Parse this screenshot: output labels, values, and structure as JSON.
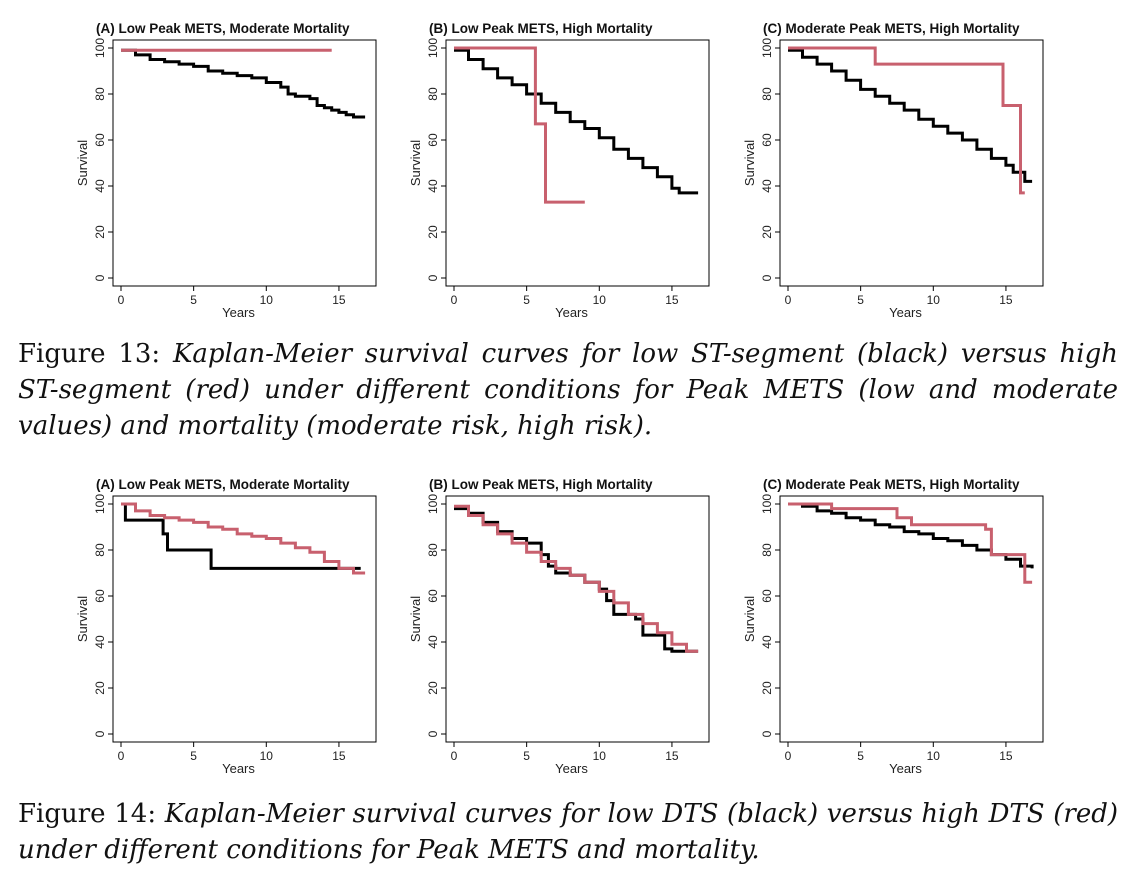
{
  "figures": [
    {
      "id": "fig13",
      "caption": {
        "label": "Figure 13:",
        "text": "Kaplan-Meier survival curves for low ST-segment (black) versus high ST-segment (red) under different conditions for Peak METS (low and moderate values) and mortality (moderate risk, high risk)."
      }
    },
    {
      "id": "fig14",
      "caption": {
        "label": "Figure 14:",
        "text": "Kaplan-Meier survival curves for low DTS (black) versus high DTS (red) under different conditions for Peak METS and mortality."
      }
    }
  ],
  "colors": {
    "black": "#000000",
    "red": "#c8606e"
  },
  "chart_data": [
    {
      "figure": "fig13",
      "type": "line",
      "step": true,
      "title": "(A) Low Peak METS, Moderate Mortality",
      "xlabel": "Years",
      "ylabel": "Survival",
      "xticks": [
        "0",
        "5",
        "10",
        "15"
      ],
      "xtick_values": [
        0,
        5,
        10,
        15
      ],
      "yticks": [
        "0",
        "20",
        "40",
        "60",
        "80",
        "100"
      ],
      "ytick_values": [
        0,
        20,
        40,
        60,
        80,
        100
      ],
      "xlim": [
        0,
        17
      ],
      "ylim": [
        0,
        100
      ],
      "series": [
        {
          "color": "black",
          "x": [
            0,
            1,
            2,
            3,
            4,
            5,
            6,
            7,
            8,
            9,
            10,
            11,
            11.5,
            12,
            13,
            13.5,
            14,
            14.5,
            15,
            15.5,
            16,
            16.8
          ],
          "y": [
            99,
            97,
            95,
            94,
            93,
            92,
            90,
            89,
            88,
            87,
            85,
            83,
            80,
            79,
            78,
            75,
            74,
            73,
            72,
            71,
            70,
            70
          ]
        },
        {
          "color": "red",
          "x": [
            0,
            14.5
          ],
          "y": [
            99,
            99
          ]
        }
      ]
    },
    {
      "figure": "fig13",
      "type": "line",
      "step": true,
      "title": "(B) Low Peak METS, High Mortality",
      "xlabel": "Years",
      "ylabel": "Survival",
      "xticks": [
        "0",
        "5",
        "10",
        "15"
      ],
      "xtick_values": [
        0,
        5,
        10,
        15
      ],
      "yticks": [
        "0",
        "20",
        "40",
        "60",
        "80",
        "100"
      ],
      "ytick_values": [
        0,
        20,
        40,
        60,
        80,
        100
      ],
      "xlim": [
        0,
        17
      ],
      "ylim": [
        0,
        100
      ],
      "series": [
        {
          "color": "black",
          "x": [
            0,
            1,
            2,
            3,
            4,
            5,
            6,
            7,
            8,
            9,
            10,
            11,
            12,
            13,
            14,
            15,
            15.5,
            16,
            16.8
          ],
          "y": [
            99,
            95,
            91,
            87,
            84,
            80,
            76,
            72,
            68,
            65,
            61,
            56,
            52,
            48,
            44,
            39,
            37,
            37,
            37
          ]
        },
        {
          "color": "red",
          "x": [
            0,
            5.6,
            6.3,
            9
          ],
          "y": [
            100,
            67,
            33,
            33
          ]
        }
      ]
    },
    {
      "figure": "fig13",
      "type": "line",
      "step": true,
      "title": "(C) Moderate Peak METS, High Mortality",
      "xlabel": "Years",
      "ylabel": "Survival",
      "xticks": [
        "0",
        "5",
        "10",
        "15"
      ],
      "xtick_values": [
        0,
        5,
        10,
        15
      ],
      "yticks": [
        "0",
        "20",
        "40",
        "60",
        "80",
        "100"
      ],
      "ytick_values": [
        0,
        20,
        40,
        60,
        80,
        100
      ],
      "xlim": [
        0,
        17
      ],
      "ylim": [
        0,
        100
      ],
      "series": [
        {
          "color": "black",
          "x": [
            0,
            1,
            2,
            3,
            4,
            5,
            6,
            7,
            8,
            9,
            10,
            11,
            12,
            13,
            14,
            15,
            15.5,
            16,
            16.3,
            16.8
          ],
          "y": [
            99,
            96,
            93,
            90,
            86,
            82,
            79,
            76,
            73,
            69,
            66,
            63,
            60,
            56,
            52,
            49,
            46,
            46,
            42,
            42
          ]
        },
        {
          "color": "red",
          "x": [
            0,
            6,
            14.8,
            16,
            16.3
          ],
          "y": [
            100,
            93,
            75,
            37,
            37
          ]
        }
      ]
    },
    {
      "figure": "fig14",
      "type": "line",
      "step": true,
      "title": "(A) Low Peak METS, Moderate Mortality",
      "xlabel": "Years",
      "ylabel": "Survival",
      "xticks": [
        "0",
        "5",
        "10",
        "15"
      ],
      "xtick_values": [
        0,
        5,
        10,
        15
      ],
      "yticks": [
        "0",
        "20",
        "40",
        "60",
        "80",
        "100"
      ],
      "ytick_values": [
        0,
        20,
        40,
        60,
        80,
        100
      ],
      "xlim": [
        0,
        17
      ],
      "ylim": [
        0,
        100
      ],
      "series": [
        {
          "color": "black",
          "x": [
            0,
            0.3,
            2.9,
            3.2,
            6.2,
            16.5
          ],
          "y": [
            100,
            93,
            87,
            80,
            72,
            72
          ]
        },
        {
          "color": "red",
          "x": [
            0,
            1,
            2,
            3,
            4,
            5,
            6,
            7,
            8,
            9,
            10,
            11,
            12,
            13,
            14,
            15,
            16,
            16.8
          ],
          "y": [
            100,
            97,
            95,
            94,
            93,
            92,
            90,
            89,
            87,
            86,
            85,
            83,
            81,
            79,
            75,
            72,
            70,
            70
          ]
        }
      ]
    },
    {
      "figure": "fig14",
      "type": "line",
      "step": true,
      "title": "(B) Low Peak METS, High Mortality",
      "xlabel": "Years",
      "ylabel": "Survival",
      "xticks": [
        "0",
        "5",
        "10",
        "15"
      ],
      "xtick_values": [
        0,
        5,
        10,
        15
      ],
      "yticks": [
        "0",
        "20",
        "40",
        "60",
        "80",
        "100"
      ],
      "ytick_values": [
        0,
        20,
        40,
        60,
        80,
        100
      ],
      "xlim": [
        0,
        17
      ],
      "ylim": [
        0,
        100
      ],
      "series": [
        {
          "color": "black",
          "x": [
            0,
            1,
            2,
            3,
            4,
            5,
            5.5,
            6,
            6.5,
            7,
            8,
            9,
            10,
            10.5,
            11,
            12,
            12.5,
            13,
            14,
            14.5,
            15,
            16,
            16.8
          ],
          "y": [
            98,
            96,
            92,
            88,
            85,
            83,
            83,
            78,
            73,
            70,
            69,
            66,
            63,
            58,
            52,
            52,
            50,
            43,
            43,
            37,
            36,
            36,
            36
          ]
        },
        {
          "color": "red",
          "x": [
            0,
            1,
            2,
            3,
            4,
            5,
            6,
            7,
            8,
            9,
            10,
            11,
            12,
            13,
            14,
            15,
            16,
            16.8
          ],
          "y": [
            99,
            95,
            91,
            87,
            83,
            79,
            75,
            72,
            69,
            66,
            62,
            57,
            52,
            48,
            44,
            39,
            36,
            36
          ]
        }
      ]
    },
    {
      "figure": "fig14",
      "type": "line",
      "step": true,
      "title": "(C) Moderate Peak METS, High Mortality",
      "xlabel": "Years",
      "ylabel": "Survival",
      "xticks": [
        "0",
        "5",
        "10",
        "15"
      ],
      "xtick_values": [
        0,
        5,
        10,
        15
      ],
      "yticks": [
        "0",
        "20",
        "40",
        "60",
        "80",
        "100"
      ],
      "ytick_values": [
        0,
        20,
        40,
        60,
        80,
        100
      ],
      "xlim": [
        0,
        17
      ],
      "ylim": [
        0,
        100
      ],
      "series": [
        {
          "color": "black",
          "x": [
            0,
            1,
            2,
            3,
            4,
            5,
            6,
            7,
            8,
            9,
            10,
            11,
            12,
            13,
            14,
            15,
            16,
            16.8
          ],
          "y": [
            100,
            99,
            97,
            96,
            94,
            93,
            91,
            90,
            88,
            87,
            85,
            84,
            82,
            80,
            78,
            76,
            73,
            72
          ]
        },
        {
          "color": "red",
          "x": [
            0,
            3,
            7.5,
            8.5,
            13.6,
            14,
            16.3,
            16.8
          ],
          "y": [
            100,
            98,
            94,
            91,
            89,
            78,
            66,
            66
          ]
        }
      ]
    }
  ]
}
